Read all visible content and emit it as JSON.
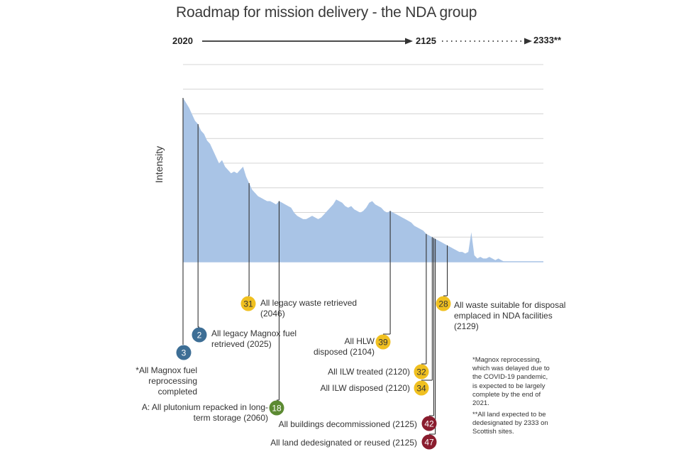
{
  "title": "Roadmap for mission delivery - the NDA group",
  "timeline": {
    "start": "2020",
    "mid": "2125",
    "end": "2333**"
  },
  "colors": {
    "area": "#a9c4e6",
    "gridline": "#d4d4d4",
    "leader": "#333333",
    "blue": "#3d6e95",
    "yellow": "#f0c020",
    "green": "#5c8a32",
    "red": "#8a1c2e"
  },
  "chart_data": {
    "type": "area",
    "title": "Roadmap for mission delivery - the NDA group",
    "xlabel": "",
    "ylabel": "Intensity",
    "xlim": [
      2020,
      2140
    ],
    "ylim": [
      0,
      100
    ],
    "grid": true,
    "gridlines": 8,
    "x": [
      2020,
      2021,
      2022,
      2023,
      2024,
      2025,
      2026,
      2027,
      2028,
      2029,
      2030,
      2031,
      2032,
      2033,
      2034,
      2035,
      2036,
      2037,
      2038,
      2039,
      2040,
      2041,
      2042,
      2043,
      2044,
      2045,
      2046,
      2047,
      2048,
      2049,
      2050,
      2051,
      2052,
      2053,
      2054,
      2055,
      2056,
      2057,
      2058,
      2059,
      2060,
      2061,
      2062,
      2063,
      2064,
      2065,
      2066,
      2067,
      2068,
      2069,
      2070,
      2071,
      2072,
      2073,
      2074,
      2075,
      2076,
      2077,
      2078,
      2079,
      2080,
      2081,
      2082,
      2083,
      2084,
      2085,
      2086,
      2087,
      2088,
      2089,
      2090,
      2091,
      2092,
      2093,
      2094,
      2095,
      2096,
      2097,
      2098,
      2099,
      2100,
      2101,
      2102,
      2103,
      2104,
      2105,
      2106,
      2107,
      2108,
      2109,
      2110,
      2111,
      2112,
      2113,
      2114,
      2115,
      2116,
      2117,
      2118,
      2119,
      2120,
      2121,
      2122,
      2123,
      2124,
      2125,
      2126,
      2127,
      2128,
      2129,
      2130,
      2131,
      2132,
      2133,
      2134,
      2135,
      2136,
      2137,
      2138,
      2139,
      2140
    ],
    "values": [
      100,
      97,
      94,
      90,
      86,
      84,
      80,
      78,
      74,
      72,
      68,
      64,
      60,
      62,
      58,
      56,
      54,
      55,
      54,
      56,
      58,
      52,
      48,
      44,
      42,
      40,
      39,
      38,
      37,
      37,
      36,
      35,
      37,
      36,
      35,
      34,
      33,
      30,
      28,
      27,
      26,
      26,
      27,
      28,
      27,
      26,
      27,
      29,
      31,
      33,
      35,
      38,
      37,
      36,
      34,
      33,
      34,
      32,
      31,
      30,
      31,
      33,
      36,
      37,
      35,
      34,
      33,
      31,
      30,
      31,
      30,
      29,
      28,
      27,
      26,
      25,
      24,
      22,
      21,
      20,
      19,
      17,
      16,
      15,
      14,
      13,
      12,
      11,
      10,
      9,
      8,
      7,
      6,
      6,
      5,
      6,
      18,
      4,
      2,
      3,
      2,
      2,
      3,
      2,
      1,
      2,
      1,
      0,
      0,
      0,
      0,
      0,
      0,
      0,
      0,
      0,
      0,
      0,
      0,
      0,
      0
    ],
    "milestones": [
      {
        "id": "3",
        "label": "*All Magnox fuel reprocessing completed",
        "year": 2020,
        "color": "blue"
      },
      {
        "id": "2",
        "label": "All legacy Magnox fuel retrieved (2025)",
        "year": 2025,
        "color": "blue"
      },
      {
        "id": "31",
        "label": "All legacy waste retrieved (2046)",
        "year": 2042,
        "color": "yellow"
      },
      {
        "id": "18",
        "label": "A: All plutonium repacked in long-term storage (2060)",
        "year": 2052,
        "color": "green"
      },
      {
        "id": "39",
        "label": "All HLW disposed (2104)",
        "year": 2089,
        "color": "yellow"
      },
      {
        "id": "32",
        "label": "All ILW treated (2120)",
        "year": 2101,
        "color": "yellow"
      },
      {
        "id": "34",
        "label": "All ILW disposed (2120)",
        "year": 2103,
        "color": "yellow"
      },
      {
        "id": "42",
        "label": "All buildings decommissioned (2125)",
        "year": 2103.5,
        "color": "red"
      },
      {
        "id": "47",
        "label": "All land dedesignated or reused (2125)",
        "year": 2104,
        "color": "red"
      },
      {
        "id": "28",
        "label": "All waste suitable for disposal emplaced in NDA facilities (2129)",
        "year": 2108,
        "color": "yellow"
      }
    ]
  },
  "labels": {
    "m3_l1": "*All Magnox fuel",
    "m3_l2": "reprocessing",
    "m3_l3": "completed",
    "m2_l1": "All legacy Magnox fuel",
    "m2_l2": "retrieved (2025)",
    "m31_l1": "All legacy waste retrieved",
    "m31_l2": "(2046)",
    "m18_l1": "A: All plutonium repacked in long-",
    "m18_l2": "term storage (2060)",
    "m39_l1": "All HLW",
    "m39_l2": "disposed (2104)",
    "m32": "All ILW treated (2120)",
    "m34": "All ILW disposed (2120)",
    "m42": "All buildings decommissioned (2125)",
    "m47": "All land dedesignated or reused  (2125)",
    "m28_l1": "All waste suitable for disposal",
    "m28_l2": "emplaced in NDA facilities",
    "m28_l3": "(2129)"
  },
  "notes": {
    "n1": [
      "*Magnox reprocessing,",
      "which was delayed due to",
      "the COVID-19 pandemic,",
      "is expected to be largely",
      "complete by the end of",
      "2021."
    ],
    "n2": [
      "**All land expected to be",
      "dedesignated by 2333 on",
      "Scottish sites."
    ]
  }
}
